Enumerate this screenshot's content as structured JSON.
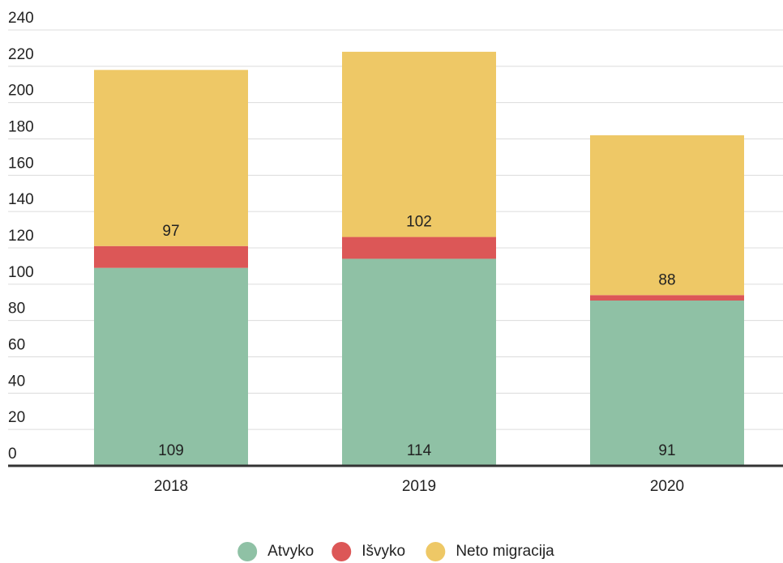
{
  "chart_data": {
    "type": "stacked_bar",
    "categories": [
      "2018",
      "2019",
      "2020"
    ],
    "series": [
      {
        "name": "Atvyko",
        "color": "#8fc1a5",
        "values": [
          109,
          114,
          91
        ],
        "show_labels": true
      },
      {
        "name": "Išvyko",
        "color": "#dc5757",
        "values": [
          12,
          12,
          3
        ],
        "show_labels": false
      },
      {
        "name": "Neto migracija",
        "color": "#eec866",
        "values": [
          97,
          102,
          88
        ],
        "show_labels": true
      }
    ],
    "ylim": [
      0,
      240
    ],
    "yticks": [
      0,
      20,
      40,
      60,
      80,
      100,
      120,
      140,
      160,
      180,
      200,
      220,
      240
    ],
    "grid": true,
    "legend": "bottom"
  }
}
